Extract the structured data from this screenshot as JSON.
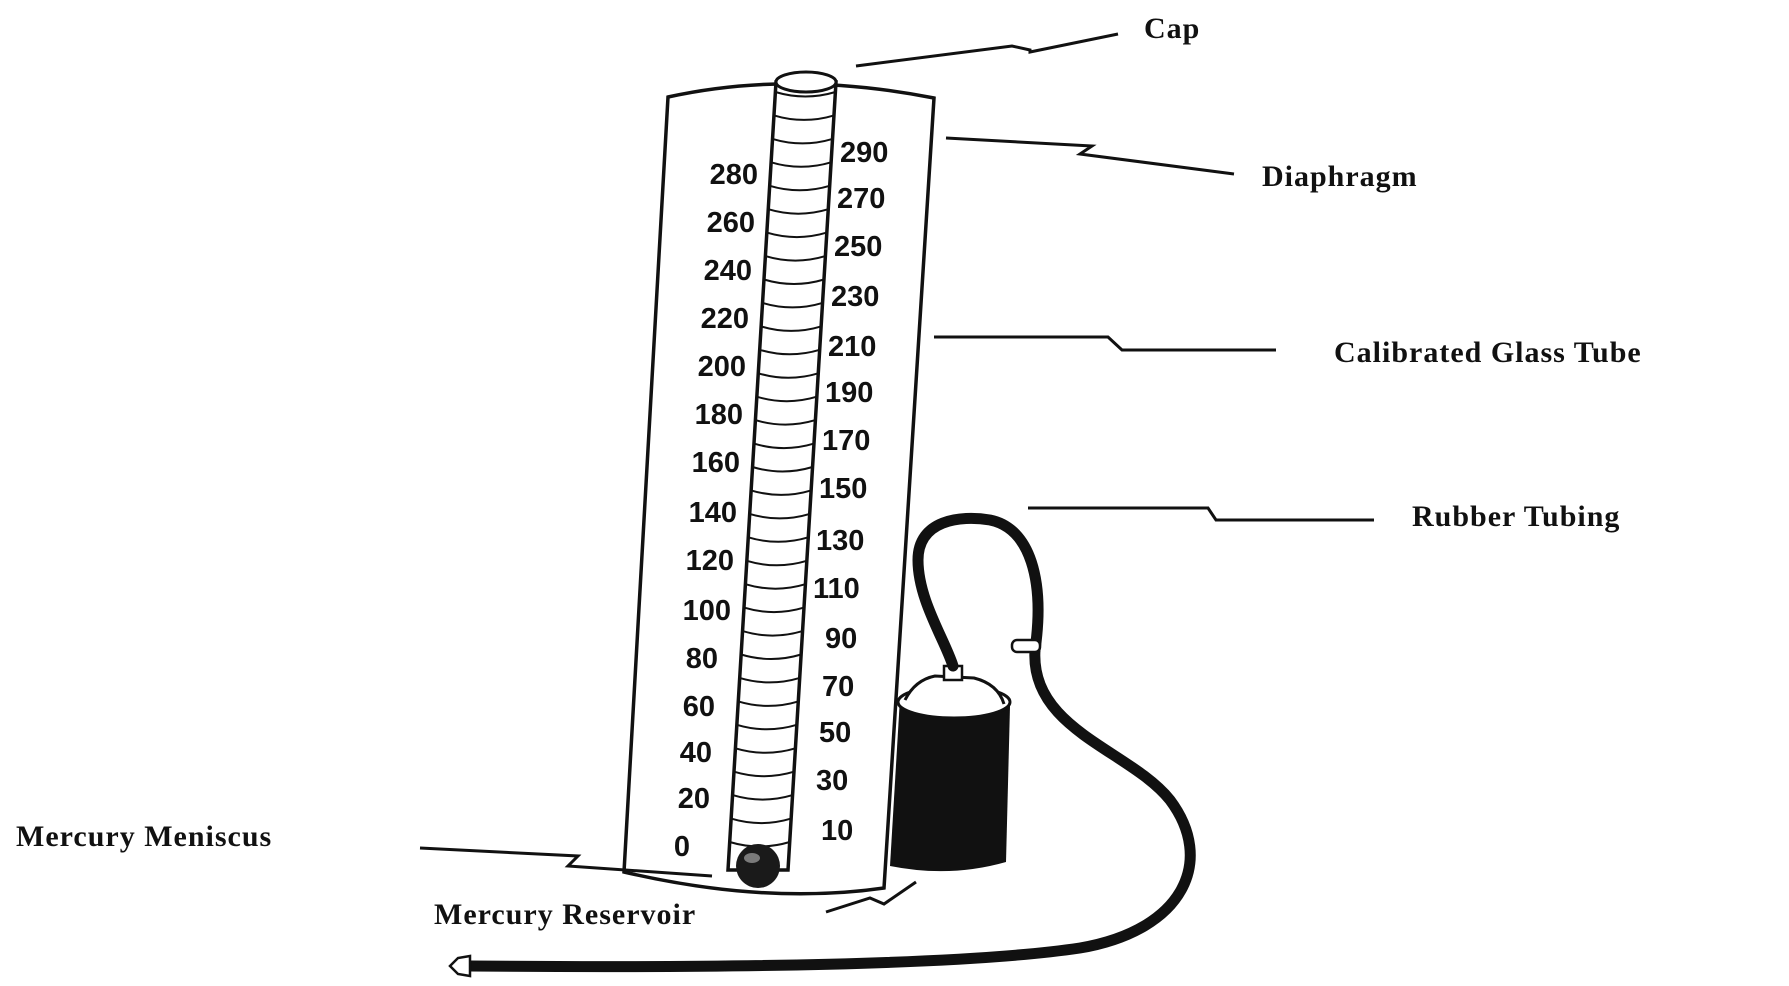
{
  "labels": {
    "cap": "Cap",
    "diaphragm": "Diaphragm",
    "calibrated_glass_tube": "Calibrated Glass Tube",
    "rubber_tubing": "Rubber Tubing",
    "mercury_meniscus": "Mercury Meniscus",
    "mercury_reservoir": "Mercury Reservoir"
  },
  "scale": {
    "left": [
      "280",
      "260",
      "240",
      "220",
      "200",
      "180",
      "160",
      "140",
      "120",
      "100",
      "80",
      "60",
      "40",
      "20",
      "0"
    ],
    "right": [
      "290",
      "270",
      "250",
      "230",
      "210",
      "190",
      "170",
      "150",
      "130",
      "110",
      "90",
      "70",
      "50",
      "30",
      "10"
    ]
  },
  "colors": {
    "ink": "#111111",
    "background": "#ffffff"
  }
}
